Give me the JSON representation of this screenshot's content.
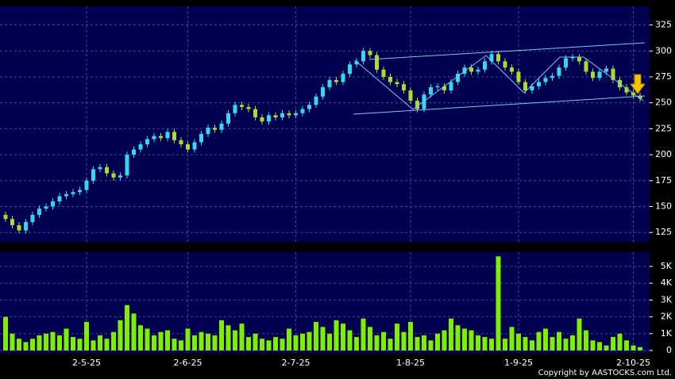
{
  "chart_data": [
    {
      "type": "candlestick",
      "up_color": "#36d8ee",
      "down_color": "#a8dc30",
      "ylim": [
        116,
        343
      ],
      "yticks": [
        125,
        150,
        175,
        200,
        225,
        250,
        275,
        300,
        325
      ],
      "grid": true,
      "open": [
        142,
        138,
        132,
        127,
        135,
        142,
        148,
        150,
        155,
        160,
        162,
        164,
        166,
        175,
        186,
        188,
        182,
        178,
        180,
        200,
        205,
        210,
        215,
        218,
        216,
        222,
        214,
        210,
        205,
        212,
        220,
        226,
        224,
        230,
        240,
        248,
        246,
        244,
        236,
        232,
        238,
        236,
        240,
        238,
        240,
        244,
        248,
        256,
        265,
        272,
        270,
        278,
        287,
        290,
        300,
        296,
        282,
        275,
        270,
        268,
        262,
        252,
        244,
        258,
        265,
        266,
        262,
        270,
        278,
        284,
        280,
        282,
        290,
        297,
        290,
        284,
        280,
        270,
        262,
        266,
        270,
        274,
        276,
        284,
        293,
        294,
        290,
        280,
        274,
        280,
        283,
        272,
        265,
        260,
        257
      ],
      "high": [
        145,
        141,
        135,
        138,
        145,
        151,
        153,
        158,
        163,
        165,
        167,
        169,
        178,
        189,
        191,
        191,
        185,
        183,
        203,
        208,
        213,
        218,
        221,
        221,
        225,
        225,
        217,
        213,
        215,
        223,
        229,
        229,
        233,
        243,
        251,
        251,
        249,
        247,
        239,
        241,
        241,
        243,
        243,
        243,
        247,
        251,
        259,
        268,
        275,
        275,
        281,
        290,
        293,
        303,
        303,
        299,
        285,
        278,
        273,
        271,
        265,
        255,
        261,
        268,
        269,
        269,
        273,
        281,
        287,
        287,
        285,
        293,
        300,
        300,
        293,
        287,
        283,
        273,
        269,
        273,
        277,
        279,
        287,
        296,
        297,
        297,
        293,
        283,
        283,
        286,
        286,
        275,
        268,
        263,
        260
      ],
      "low": [
        135,
        129,
        124,
        124,
        132,
        139,
        145,
        147,
        152,
        157,
        159,
        161,
        163,
        172,
        183,
        179,
        175,
        175,
        177,
        197,
        202,
        207,
        212,
        213,
        213,
        211,
        207,
        202,
        202,
        209,
        217,
        221,
        221,
        227,
        237,
        243,
        241,
        233,
        229,
        229,
        233,
        233,
        235,
        235,
        237,
        241,
        245,
        253,
        262,
        267,
        267,
        275,
        284,
        287,
        293,
        279,
        272,
        267,
        265,
        259,
        249,
        241,
        241,
        255,
        262,
        259,
        259,
        267,
        275,
        277,
        277,
        279,
        287,
        287,
        281,
        277,
        267,
        259,
        259,
        263,
        267,
        271,
        273,
        281,
        290,
        287,
        277,
        271,
        271,
        277,
        269,
        262,
        257,
        254,
        251
      ],
      "close": [
        138,
        132,
        127,
        135,
        142,
        148,
        150,
        155,
        160,
        162,
        164,
        166,
        175,
        186,
        188,
        182,
        178,
        180,
        200,
        205,
        210,
        215,
        218,
        216,
        222,
        214,
        210,
        205,
        212,
        220,
        226,
        224,
        230,
        240,
        248,
        246,
        244,
        236,
        232,
        238,
        236,
        240,
        238,
        240,
        244,
        248,
        256,
        265,
        272,
        270,
        278,
        287,
        290,
        300,
        296,
        282,
        275,
        270,
        268,
        262,
        252,
        244,
        258,
        265,
        266,
        262,
        270,
        278,
        284,
        280,
        282,
        290,
        297,
        290,
        284,
        280,
        270,
        262,
        266,
        270,
        274,
        276,
        284,
        293,
        294,
        290,
        280,
        274,
        280,
        283,
        272,
        265,
        260,
        257,
        254
      ]
    },
    {
      "type": "bar",
      "color": "#7cf000",
      "ylim": [
        -140,
        5850
      ],
      "yticks": [
        0,
        {
          "value": 1000,
          "label": "1K"
        },
        {
          "value": 2000,
          "label": "2K"
        },
        {
          "value": 3000,
          "label": "3K"
        },
        {
          "value": 4000,
          "label": "4K"
        },
        {
          "value": 5000,
          "label": "5K"
        }
      ],
      "grid": true,
      "categories": [
        null,
        null,
        null,
        null,
        null,
        null,
        null,
        null,
        null,
        null,
        null,
        null,
        "2-5-25",
        null,
        null,
        null,
        null,
        null,
        null,
        null,
        null,
        null,
        null,
        null,
        null,
        null,
        null,
        "2-6-25",
        null,
        null,
        null,
        null,
        null,
        null,
        null,
        null,
        null,
        null,
        null,
        null,
        null,
        null,
        null,
        "2-7-25",
        null,
        null,
        null,
        null,
        null,
        null,
        null,
        null,
        null,
        null,
        null,
        null,
        null,
        null,
        null,
        null,
        "1-8-25",
        null,
        null,
        null,
        null,
        null,
        null,
        null,
        null,
        null,
        null,
        null,
        null,
        null,
        null,
        null,
        "1-9-25",
        null,
        null,
        null,
        null,
        null,
        null,
        null,
        null,
        null,
        null,
        null,
        null,
        null,
        null,
        null,
        null,
        "2-10-25",
        null
      ],
      "values": [
        2000,
        1000,
        700,
        500,
        700,
        900,
        1000,
        1100,
        900,
        1300,
        800,
        700,
        1700,
        600,
        900,
        700,
        1100,
        1800,
        2700,
        2200,
        1500,
        1300,
        900,
        1100,
        1200,
        700,
        600,
        1300,
        900,
        1100,
        1000,
        900,
        1800,
        1500,
        1200,
        1600,
        800,
        1000,
        700,
        600,
        800,
        700,
        1300,
        900,
        1000,
        1100,
        1700,
        1400,
        1000,
        1800,
        1600,
        1200,
        800,
        1900,
        1400,
        900,
        1100,
        700,
        1600,
        1100,
        1700,
        800,
        900,
        600,
        1000,
        1200,
        1900,
        1500,
        1300,
        1200,
        900,
        800,
        700,
        5600,
        700,
        1400,
        1000,
        800,
        600,
        1100,
        1300,
        800,
        1100,
        700,
        900,
        1900,
        1200,
        600,
        500,
        300,
        800,
        1000,
        600,
        300,
        200
      ],
      "annotation": "Copyright by AASTOCKS.com Ltd."
    }
  ]
}
